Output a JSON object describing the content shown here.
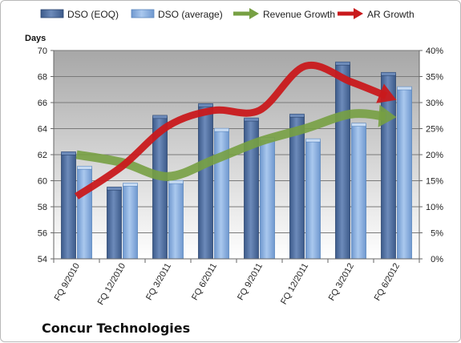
{
  "chart_data": {
    "type": "bar",
    "title": "Concur Technologies",
    "ylabel": "Days",
    "categories": [
      "FQ 9/2010",
      "FQ 12/2010",
      "FQ 3/2011",
      "FQ 6/2011",
      "FQ 9/2011",
      "FQ 12/2011",
      "FQ 3/2012",
      "FQ 6/2012"
    ],
    "ylim": [
      54,
      70
    ],
    "yticks": [
      54,
      56,
      58,
      60,
      62,
      64,
      66,
      68,
      70
    ],
    "y2lim": [
      0,
      40
    ],
    "y2ticks": [
      "0%",
      "5%",
      "10%",
      "15%",
      "20%",
      "25%",
      "30%",
      "35%",
      "40%"
    ],
    "legend_position": "top",
    "bar_series": [
      {
        "name": "DSO (EOQ)",
        "color": "#4f6d9c",
        "values": [
          62.1,
          59.4,
          64.9,
          65.8,
          64.7,
          65.0,
          69.0,
          68.2
        ]
      },
      {
        "name": "DSO (average)",
        "color": "#8db4e2",
        "values": [
          61.0,
          59.7,
          59.9,
          63.9,
          63.2,
          63.1,
          64.3,
          67.1
        ]
      }
    ],
    "line_series": [
      {
        "name": "Revenue Growth",
        "color": "#77a043",
        "axis": "right",
        "values": [
          20.0,
          18.5,
          15.8,
          19.0,
          22.5,
          25.0,
          27.8,
          27.2
        ]
      },
      {
        "name": "AR Growth",
        "color": "#c9191c",
        "axis": "right",
        "values": [
          12.0,
          17.8,
          25.5,
          28.5,
          28.5,
          37.0,
          34.0,
          30.5
        ]
      }
    ]
  }
}
